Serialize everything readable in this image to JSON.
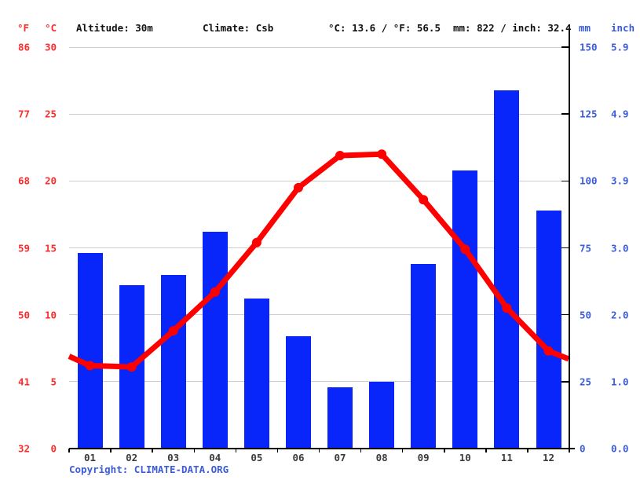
{
  "header": {
    "unit_f": "°F",
    "unit_c": "°C",
    "altitude": "Altitude: 30m",
    "climate": "Climate: Csb",
    "temp_summary": "°C: 13.6 / °F: 56.5",
    "precip_summary": "mm: 822 / inch: 32.4",
    "unit_mm": "mm",
    "unit_inch": "inch"
  },
  "footer": {
    "copyright_label": "Copyright: ",
    "link_text": "CLIMATE-DATA.ORG"
  },
  "colors": {
    "temperature_line": "#ff0000",
    "temperature_text": "#ff2b2b",
    "precipitation_bar": "#0826fa",
    "precipitation_text": "#3b5bd7",
    "grid": "#cdcdcd",
    "axis": "#000000",
    "month_text": "#3a3a3a",
    "header_text": "#111111"
  },
  "chart_data": {
    "type": "combo",
    "title": "Climate graph (climograph): monthly precipitation bars and mean temperature line",
    "categories": [
      "01",
      "02",
      "03",
      "04",
      "05",
      "06",
      "07",
      "08",
      "09",
      "10",
      "11",
      "12"
    ],
    "series": [
      {
        "name": "precipitation_mm",
        "type": "bar",
        "values": [
          73,
          61,
          65,
          81,
          56,
          42,
          23,
          25,
          69,
          104,
          134,
          89
        ]
      },
      {
        "name": "temperature_c",
        "type": "line",
        "values": [
          6.2,
          6.1,
          8.8,
          11.7,
          15.4,
          19.5,
          21.9,
          22.0,
          18.6,
          14.9,
          10.5,
          7.3
        ]
      }
    ],
    "line_edge_values_c": {
      "left": 6.9,
      "right": 6.7
    },
    "axes": {
      "left_f_ticks": [
        86,
        77,
        68,
        59,
        50,
        41,
        32
      ],
      "left_c_ticks": [
        30,
        25,
        20,
        15,
        10,
        5,
        0
      ],
      "right_mm_ticks": [
        150,
        125,
        100,
        75,
        50,
        25,
        0
      ],
      "right_inch_ticks": [
        "5.9",
        "4.9",
        "3.9",
        "3.0",
        "2.0",
        "1.0",
        "0.0"
      ],
      "temp_axis_range_c": [
        0,
        30
      ],
      "precip_axis_range_mm": [
        0,
        150
      ]
    },
    "annual_mean_temp_c": 13.6,
    "annual_precip_mm": 822,
    "grid": true,
    "legend": false
  }
}
